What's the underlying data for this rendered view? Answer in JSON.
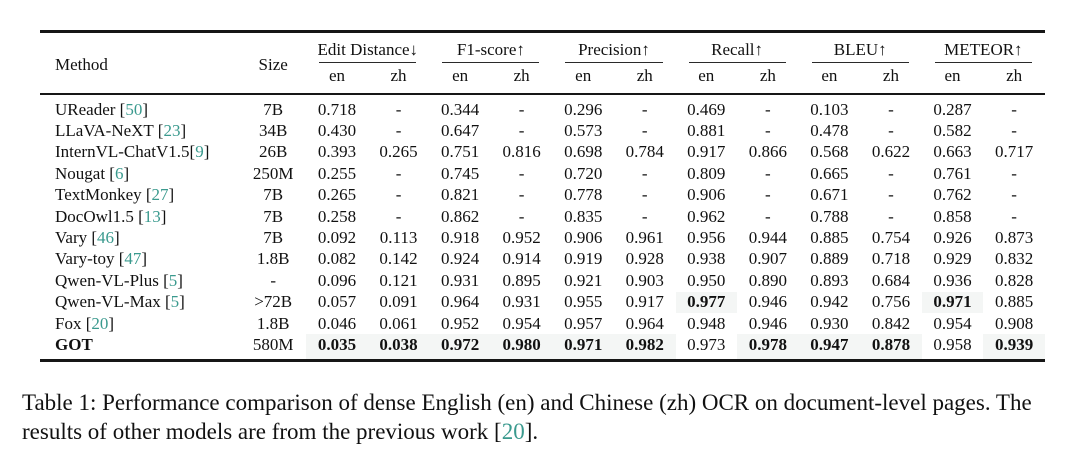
{
  "table": {
    "method_header": "Method",
    "size_header": "Size",
    "groups": [
      {
        "label": "Edit Distance↓",
        "sub": [
          "en",
          "zh"
        ]
      },
      {
        "label": "F1-score↑",
        "sub": [
          "en",
          "zh"
        ]
      },
      {
        "label": "Precision↑",
        "sub": [
          "en",
          "zh"
        ]
      },
      {
        "label": "Recall↑",
        "sub": [
          "en",
          "zh"
        ]
      },
      {
        "label": "BLEU↑",
        "sub": [
          "en",
          "zh"
        ]
      },
      {
        "label": "METEOR↑",
        "sub": [
          "en",
          "zh"
        ]
      }
    ],
    "rows": [
      {
        "pre": "UReader [",
        "cite": "50",
        "post": "]",
        "bold": false,
        "size": "7B",
        "cells": [
          [
            "0.718",
            0
          ],
          [
            "-",
            0
          ],
          [
            "0.344",
            0
          ],
          [
            "-",
            0
          ],
          [
            "0.296",
            0
          ],
          [
            "-",
            0
          ],
          [
            "0.469",
            0
          ],
          [
            "-",
            0
          ],
          [
            "0.103",
            0
          ],
          [
            "-",
            0
          ],
          [
            "0.287",
            0
          ],
          [
            "-",
            0
          ]
        ]
      },
      {
        "pre": "LLaVA-NeXT [",
        "cite": "23",
        "post": "]",
        "bold": false,
        "size": "34B",
        "cells": [
          [
            "0.430",
            0
          ],
          [
            "-",
            0
          ],
          [
            "0.647",
            0
          ],
          [
            "-",
            0
          ],
          [
            "0.573",
            0
          ],
          [
            "-",
            0
          ],
          [
            "0.881",
            0
          ],
          [
            "-",
            0
          ],
          [
            "0.478",
            0
          ],
          [
            "-",
            0
          ],
          [
            "0.582",
            0
          ],
          [
            "-",
            0
          ]
        ]
      },
      {
        "pre": "InternVL-ChatV1.5[",
        "cite": "9",
        "post": "]",
        "bold": false,
        "size": "26B",
        "cells": [
          [
            "0.393",
            0
          ],
          [
            "0.265",
            0
          ],
          [
            "0.751",
            0
          ],
          [
            "0.816",
            0
          ],
          [
            "0.698",
            0
          ],
          [
            "0.784",
            0
          ],
          [
            "0.917",
            0
          ],
          [
            "0.866",
            0
          ],
          [
            "0.568",
            0
          ],
          [
            "0.622",
            0
          ],
          [
            "0.663",
            0
          ],
          [
            "0.717",
            0
          ]
        ]
      },
      {
        "pre": "Nougat [",
        "cite": "6",
        "post": "]",
        "bold": false,
        "size": "250M",
        "cells": [
          [
            "0.255",
            0
          ],
          [
            "-",
            0
          ],
          [
            "0.745",
            0
          ],
          [
            "-",
            0
          ],
          [
            "0.720",
            0
          ],
          [
            "-",
            0
          ],
          [
            "0.809",
            0
          ],
          [
            "-",
            0
          ],
          [
            "0.665",
            0
          ],
          [
            "-",
            0
          ],
          [
            "0.761",
            0
          ],
          [
            "-",
            0
          ]
        ]
      },
      {
        "pre": "TextMonkey [",
        "cite": "27",
        "post": "]",
        "bold": false,
        "size": "7B",
        "cells": [
          [
            "0.265",
            0
          ],
          [
            "-",
            0
          ],
          [
            "0.821",
            0
          ],
          [
            "-",
            0
          ],
          [
            "0.778",
            0
          ],
          [
            "-",
            0
          ],
          [
            "0.906",
            0
          ],
          [
            "-",
            0
          ],
          [
            "0.671",
            0
          ],
          [
            "-",
            0
          ],
          [
            "0.762",
            0
          ],
          [
            "-",
            0
          ]
        ]
      },
      {
        "pre": "DocOwl1.5 [",
        "cite": "13",
        "post": "]",
        "bold": false,
        "size": "7B",
        "cells": [
          [
            "0.258",
            0
          ],
          [
            "-",
            0
          ],
          [
            "0.862",
            0
          ],
          [
            "-",
            0
          ],
          [
            "0.835",
            0
          ],
          [
            "-",
            0
          ],
          [
            "0.962",
            0
          ],
          [
            "-",
            0
          ],
          [
            "0.788",
            0
          ],
          [
            "-",
            0
          ],
          [
            "0.858",
            0
          ],
          [
            "-",
            0
          ]
        ]
      },
      {
        "pre": "Vary [",
        "cite": "46",
        "post": "]",
        "bold": false,
        "size": "7B",
        "cells": [
          [
            "0.092",
            0
          ],
          [
            "0.113",
            0
          ],
          [
            "0.918",
            0
          ],
          [
            "0.952",
            0
          ],
          [
            "0.906",
            0
          ],
          [
            "0.961",
            0
          ],
          [
            "0.956",
            0
          ],
          [
            "0.944",
            0
          ],
          [
            "0.885",
            0
          ],
          [
            "0.754",
            0
          ],
          [
            "0.926",
            0
          ],
          [
            "0.873",
            0
          ]
        ]
      },
      {
        "pre": "Vary-toy [",
        "cite": "47",
        "post": "]",
        "bold": false,
        "size": "1.8B",
        "cells": [
          [
            "0.082",
            0
          ],
          [
            "0.142",
            0
          ],
          [
            "0.924",
            0
          ],
          [
            "0.914",
            0
          ],
          [
            "0.919",
            0
          ],
          [
            "0.928",
            0
          ],
          [
            "0.938",
            0
          ],
          [
            "0.907",
            0
          ],
          [
            "0.889",
            0
          ],
          [
            "0.718",
            0
          ],
          [
            "0.929",
            0
          ],
          [
            "0.832",
            0
          ]
        ]
      },
      {
        "pre": "Qwen-VL-Plus [",
        "cite": "5",
        "post": "]",
        "bold": false,
        "size": "-",
        "cells": [
          [
            "0.096",
            0
          ],
          [
            "0.121",
            0
          ],
          [
            "0.931",
            0
          ],
          [
            "0.895",
            0
          ],
          [
            "0.921",
            0
          ],
          [
            "0.903",
            0
          ],
          [
            "0.950",
            0
          ],
          [
            "0.890",
            0
          ],
          [
            "0.893",
            0
          ],
          [
            "0.684",
            0
          ],
          [
            "0.936",
            0
          ],
          [
            "0.828",
            0
          ]
        ]
      },
      {
        "pre": "Qwen-VL-Max [",
        "cite": "5",
        "post": "]",
        "bold": false,
        "size": ">72B",
        "cells": [
          [
            "0.057",
            0
          ],
          [
            "0.091",
            0
          ],
          [
            "0.964",
            0
          ],
          [
            "0.931",
            0
          ],
          [
            "0.955",
            0
          ],
          [
            "0.917",
            0
          ],
          [
            "0.977",
            1
          ],
          [
            "0.946",
            0
          ],
          [
            "0.942",
            0
          ],
          [
            "0.756",
            0
          ],
          [
            "0.971",
            1
          ],
          [
            "0.885",
            0
          ]
        ]
      },
      {
        "pre": "Fox [",
        "cite": "20",
        "post": "]",
        "bold": false,
        "size": "1.8B",
        "cells": [
          [
            "0.046",
            0
          ],
          [
            "0.061",
            0
          ],
          [
            "0.952",
            0
          ],
          [
            "0.954",
            0
          ],
          [
            "0.957",
            0
          ],
          [
            "0.964",
            0
          ],
          [
            "0.948",
            0
          ],
          [
            "0.946",
            0
          ],
          [
            "0.930",
            0
          ],
          [
            "0.842",
            0
          ],
          [
            "0.954",
            0
          ],
          [
            "0.908",
            0
          ]
        ]
      },
      {
        "pre": "GOT",
        "cite": null,
        "post": "",
        "bold": true,
        "size": "580M",
        "cells": [
          [
            "0.035",
            1
          ],
          [
            "0.038",
            1
          ],
          [
            "0.972",
            1
          ],
          [
            "0.980",
            1
          ],
          [
            "0.971",
            1
          ],
          [
            "0.982",
            1
          ],
          [
            "0.973",
            0
          ],
          [
            "0.978",
            1
          ],
          [
            "0.947",
            1
          ],
          [
            "0.878",
            1
          ],
          [
            "0.958",
            0
          ],
          [
            "0.939",
            1
          ]
        ]
      }
    ]
  },
  "caption": {
    "prefix": "Table 1: Performance comparison of dense English (en) and Chinese (zh) OCR on document-level pages. The results of other models are from the previous work [",
    "cite": "20",
    "suffix": "]."
  },
  "colors": {
    "citation": "#3a9a8e",
    "rule": "#161616",
    "best_highlight": "#f4f6f5"
  }
}
